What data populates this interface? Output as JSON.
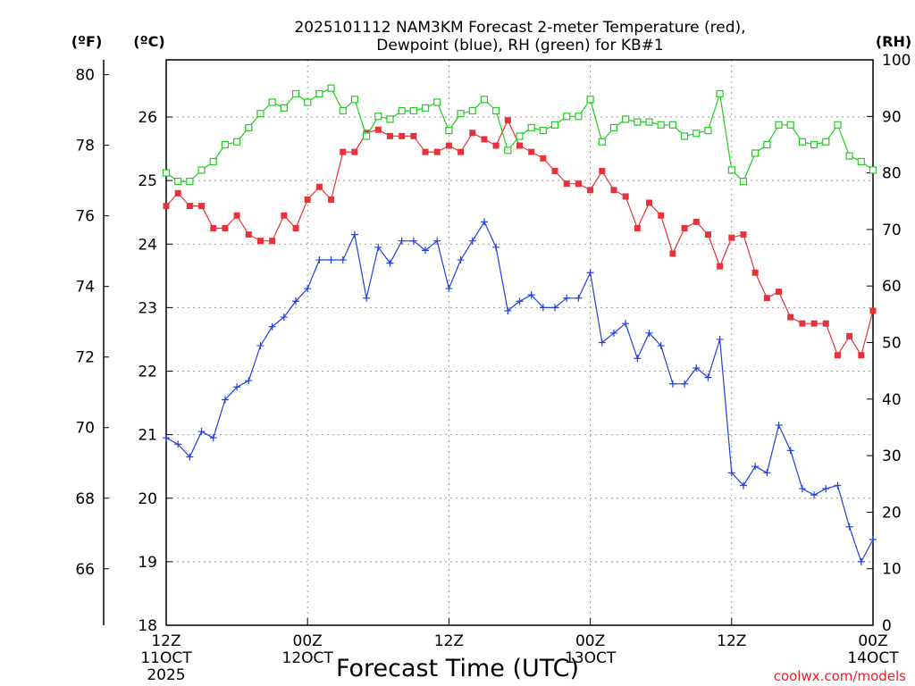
{
  "chart_data": {
    "type": "line",
    "title": [
      "2025101112 NAM3KM Forecast 2-meter Temperature (red),",
      "Dewpoint (blue), RH (green) for KB#1"
    ],
    "xlabel": "Forecast Time (UTC)",
    "credit": "coolwx.com/models",
    "units": {
      "fahrenheit": "(ºF)",
      "celsius": "(ºC)",
      "rh": "(RH)"
    },
    "x_ticks": [
      {
        "hour": 0,
        "lines": [
          "12Z",
          "11OCT",
          "2025"
        ]
      },
      {
        "hour": 12,
        "lines": [
          "00Z",
          "12OCT"
        ]
      },
      {
        "hour": 24,
        "lines": [
          "12Z"
        ]
      },
      {
        "hour": 36,
        "lines": [
          "00Z",
          "13OCT"
        ]
      },
      {
        "hour": 48,
        "lines": [
          "12Z"
        ]
      },
      {
        "hour": 60,
        "lines": [
          "00Z",
          "14OCT"
        ]
      }
    ],
    "x_range": [
      0,
      60
    ],
    "celsius_axis": {
      "range": [
        18,
        26.9
      ],
      "ticks": [
        "18",
        "19",
        "20",
        "21",
        "22",
        "23",
        "24",
        "25",
        "26"
      ]
    },
    "fahrenheit_axis": {
      "range": [
        64.4,
        80.42
      ],
      "ticks": [
        "66",
        "68",
        "70",
        "72",
        "74",
        "76",
        "78",
        "80"
      ]
    },
    "rh_axis": {
      "range": [
        0,
        100
      ],
      "ticks": [
        "0",
        "10",
        "20",
        "30",
        "40",
        "50",
        "60",
        "70",
        "80",
        "90",
        "100"
      ]
    },
    "grid": true,
    "series": [
      {
        "name": "Temperature (°C)",
        "color": "#e8323a",
        "marker": "filled-square",
        "axis": "celsius",
        "values": [
          24.6,
          24.8,
          24.6,
          24.6,
          24.25,
          24.25,
          24.45,
          24.15,
          24.05,
          24.05,
          24.45,
          24.25,
          24.7,
          24.9,
          24.7,
          25.45,
          25.45,
          25.75,
          25.8,
          25.7,
          25.7,
          25.7,
          25.45,
          25.45,
          25.55,
          25.45,
          25.75,
          25.65,
          25.55,
          25.95,
          25.55,
          25.45,
          25.35,
          25.15,
          24.95,
          24.95,
          24.85,
          25.15,
          24.85,
          24.75,
          24.25,
          24.65,
          24.45,
          23.85,
          24.25,
          24.35,
          24.15,
          23.65,
          24.1,
          24.15,
          23.55,
          23.15,
          23.25,
          22.85,
          22.75,
          22.75,
          22.75,
          22.25,
          22.55,
          22.25,
          22.95
        ]
      },
      {
        "name": "Dewpoint (°C)",
        "color": "#2040e0",
        "marker": "plus",
        "axis": "celsius",
        "values": [
          20.95,
          20.85,
          20.65,
          21.05,
          20.95,
          21.55,
          21.75,
          21.85,
          22.4,
          22.7,
          22.85,
          23.1,
          23.3,
          23.75,
          23.75,
          23.75,
          24.15,
          23.15,
          23.95,
          23.7,
          24.05,
          24.05,
          23.9,
          24.05,
          23.3,
          23.75,
          24.05,
          24.35,
          23.95,
          22.95,
          23.1,
          23.2,
          23.0,
          23.0,
          23.15,
          23.15,
          23.55,
          22.45,
          22.6,
          22.75,
          22.2,
          22.6,
          22.4,
          21.8,
          21.8,
          22.05,
          21.9,
          22.5,
          20.4,
          20.2,
          20.5,
          20.4,
          21.15,
          20.75,
          20.15,
          20.05,
          20.15,
          20.2,
          19.55,
          19.0,
          19.35
        ]
      },
      {
        "name": "RH (%)",
        "color": "#22cc22",
        "marker": "open-square",
        "axis": "rh",
        "values": [
          80,
          78.5,
          78.5,
          80.5,
          82,
          85,
          85.5,
          88,
          90.5,
          92.5,
          91.5,
          94,
          92.5,
          94,
          95,
          91,
          93,
          86.5,
          90,
          89.5,
          91,
          91,
          91.5,
          92.5,
          87.5,
          90.5,
          91,
          93,
          91,
          84,
          86.5,
          88,
          87.5,
          88.5,
          90,
          90,
          93,
          85.5,
          88,
          89.5,
          89,
          89,
          88.5,
          88.5,
          86.5,
          87,
          87.5,
          94,
          80.5,
          78.5,
          83.5,
          85,
          88.5,
          88.5,
          85.5,
          85,
          85.5,
          88.5,
          83,
          82,
          80.5
        ]
      }
    ]
  }
}
